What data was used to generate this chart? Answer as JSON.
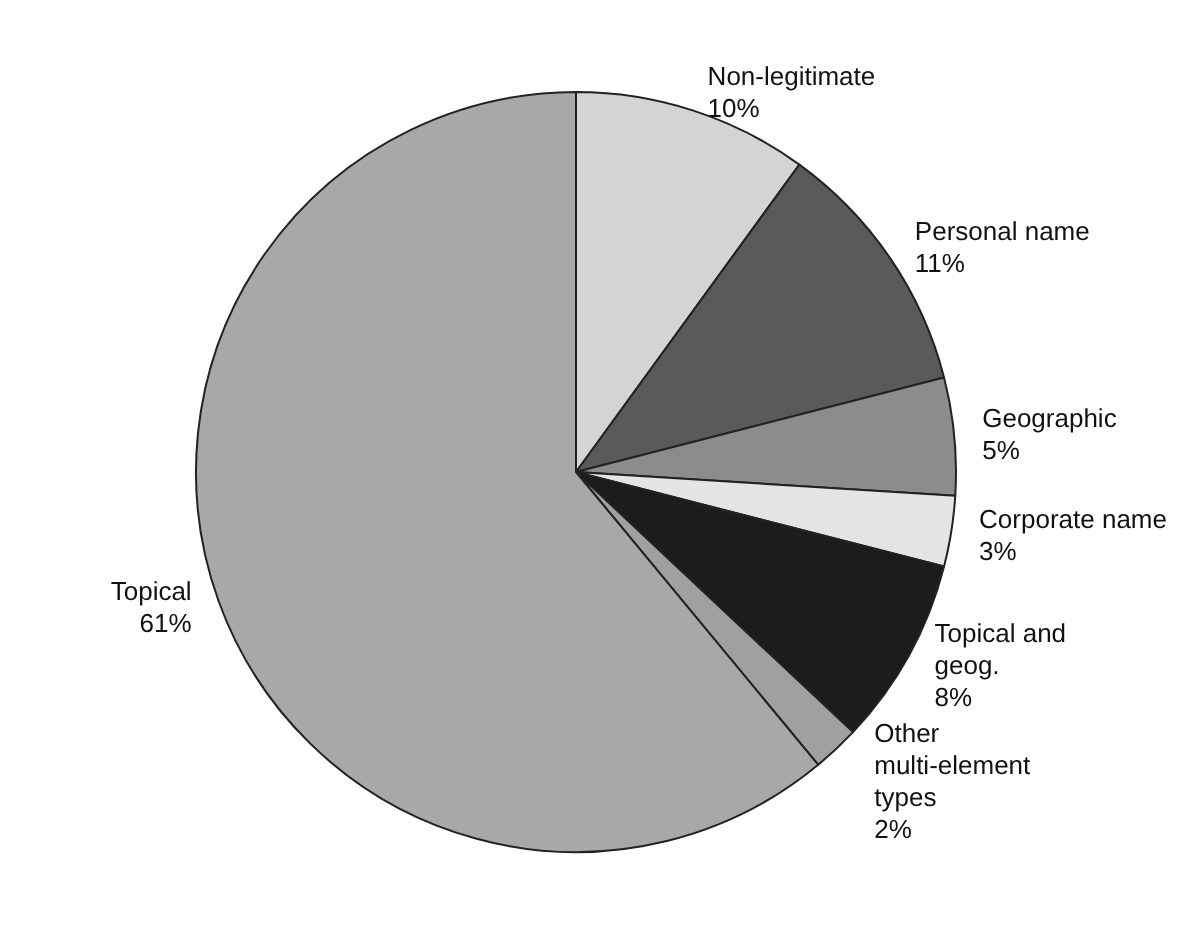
{
  "chart_data": {
    "type": "pie",
    "categories": [
      "Non-legitimate",
      "Personal name",
      "Geographic",
      "Corporate name",
      "Topical and geog.",
      "Other multi-element types",
      "Topical"
    ],
    "values": [
      10,
      11,
      5,
      3,
      8,
      2,
      61
    ],
    "colors": [
      "#d4d4d4",
      "#5a5a5a",
      "#8c8c8c",
      "#e4e4e4",
      "#1c1c1c",
      "#a0a0a0",
      "#a8a8a8"
    ],
    "value_labels": [
      "10%",
      "11%",
      "5%",
      "3%",
      "8%",
      "2%",
      "61%"
    ],
    "legend": false
  }
}
